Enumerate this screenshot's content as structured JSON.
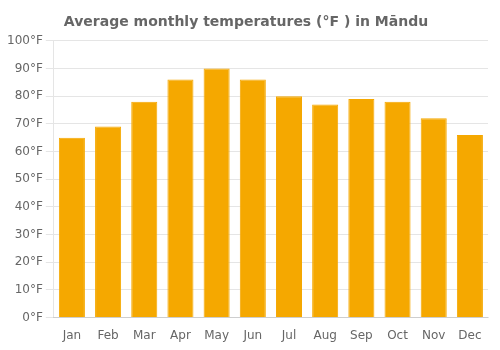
{
  "chart_data": {
    "type": "bar",
    "title": "Average monthly temperatures (°F ) in Māndu",
    "categories": [
      "Jan",
      "Feb",
      "Mar",
      "Apr",
      "May",
      "Jun",
      "Jul",
      "Aug",
      "Sep",
      "Oct",
      "Nov",
      "Dec"
    ],
    "values": [
      65,
      69,
      78,
      86,
      90,
      86,
      80,
      77,
      79,
      78,
      72,
      66
    ],
    "color": "#F5A800",
    "ylim": [
      0,
      100
    ],
    "yticks": [
      {
        "value": 0,
        "label": "0°F"
      },
      {
        "value": 10,
        "label": "10°F"
      },
      {
        "value": 20,
        "label": "20°F"
      },
      {
        "value": 30,
        "label": "30°F"
      },
      {
        "value": 40,
        "label": "40°F"
      },
      {
        "value": 50,
        "label": "50°F"
      },
      {
        "value": 60,
        "label": "60°F"
      },
      {
        "value": 70,
        "label": "70°F"
      },
      {
        "value": 80,
        "label": "80°F"
      },
      {
        "value": 90,
        "label": "90°F"
      },
      {
        "value": 100,
        "label": "100°F"
      }
    ],
    "grid": true
  }
}
